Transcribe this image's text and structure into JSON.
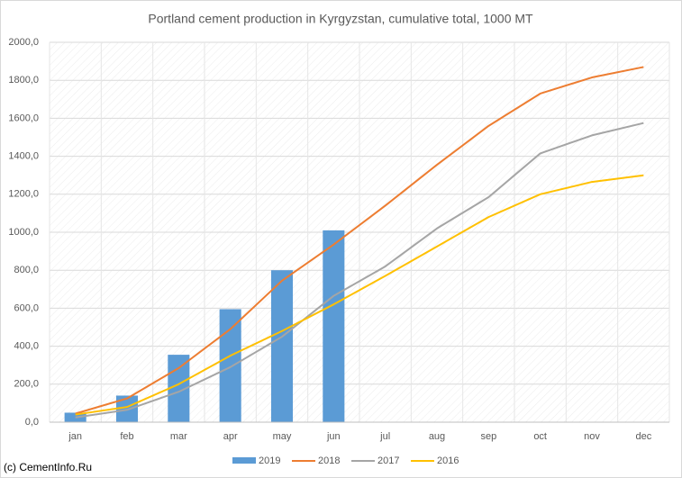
{
  "chart_data": {
    "type": "combo",
    "title": "Portland cement production in Kyrgyzstan, cumulative total, 1000 MT",
    "credit": "(c) CementInfo.Ru",
    "categories": [
      "jan",
      "feb",
      "mar",
      "apr",
      "may",
      "jun",
      "jul",
      "aug",
      "sep",
      "oct",
      "nov",
      "dec"
    ],
    "series": [
      {
        "name": "2019",
        "type": "bar",
        "color": "#5b9bd5",
        "values": [
          50,
          140,
          355,
          595,
          800,
          1010,
          null,
          null,
          null,
          null,
          null,
          null
        ]
      },
      {
        "name": "2018",
        "type": "line",
        "color": "#ed7d31",
        "values": [
          45,
          125,
          285,
          490,
          745,
          935,
          1140,
          1355,
          1560,
          1730,
          1815,
          1870
        ]
      },
      {
        "name": "2017",
        "type": "line",
        "color": "#a5a5a5",
        "values": [
          25,
          65,
          160,
          290,
          450,
          665,
          820,
          1020,
          1185,
          1415,
          1510,
          1575
        ]
      },
      {
        "name": "2016",
        "type": "line",
        "color": "#ffc000",
        "values": [
          40,
          80,
          200,
          350,
          480,
          620,
          770,
          925,
          1080,
          1200,
          1265,
          1300
        ]
      }
    ],
    "ylim": [
      0,
      2000
    ],
    "yticks": [
      {
        "value": 0,
        "label": "0,0"
      },
      {
        "value": 200,
        "label": "200,0"
      },
      {
        "value": 400,
        "label": "400,0"
      },
      {
        "value": 600,
        "label": "600,0"
      },
      {
        "value": 800,
        "label": "800,0"
      },
      {
        "value": 1000,
        "label": "1000,0"
      },
      {
        "value": 1200,
        "label": "1200,0"
      },
      {
        "value": 1400,
        "label": "1400,0"
      },
      {
        "value": 1600,
        "label": "1600,0"
      },
      {
        "value": 1800,
        "label": "1800,0"
      },
      {
        "value": 2000,
        "label": "2000,0"
      }
    ],
    "grid": true,
    "legend": "bottom"
  }
}
